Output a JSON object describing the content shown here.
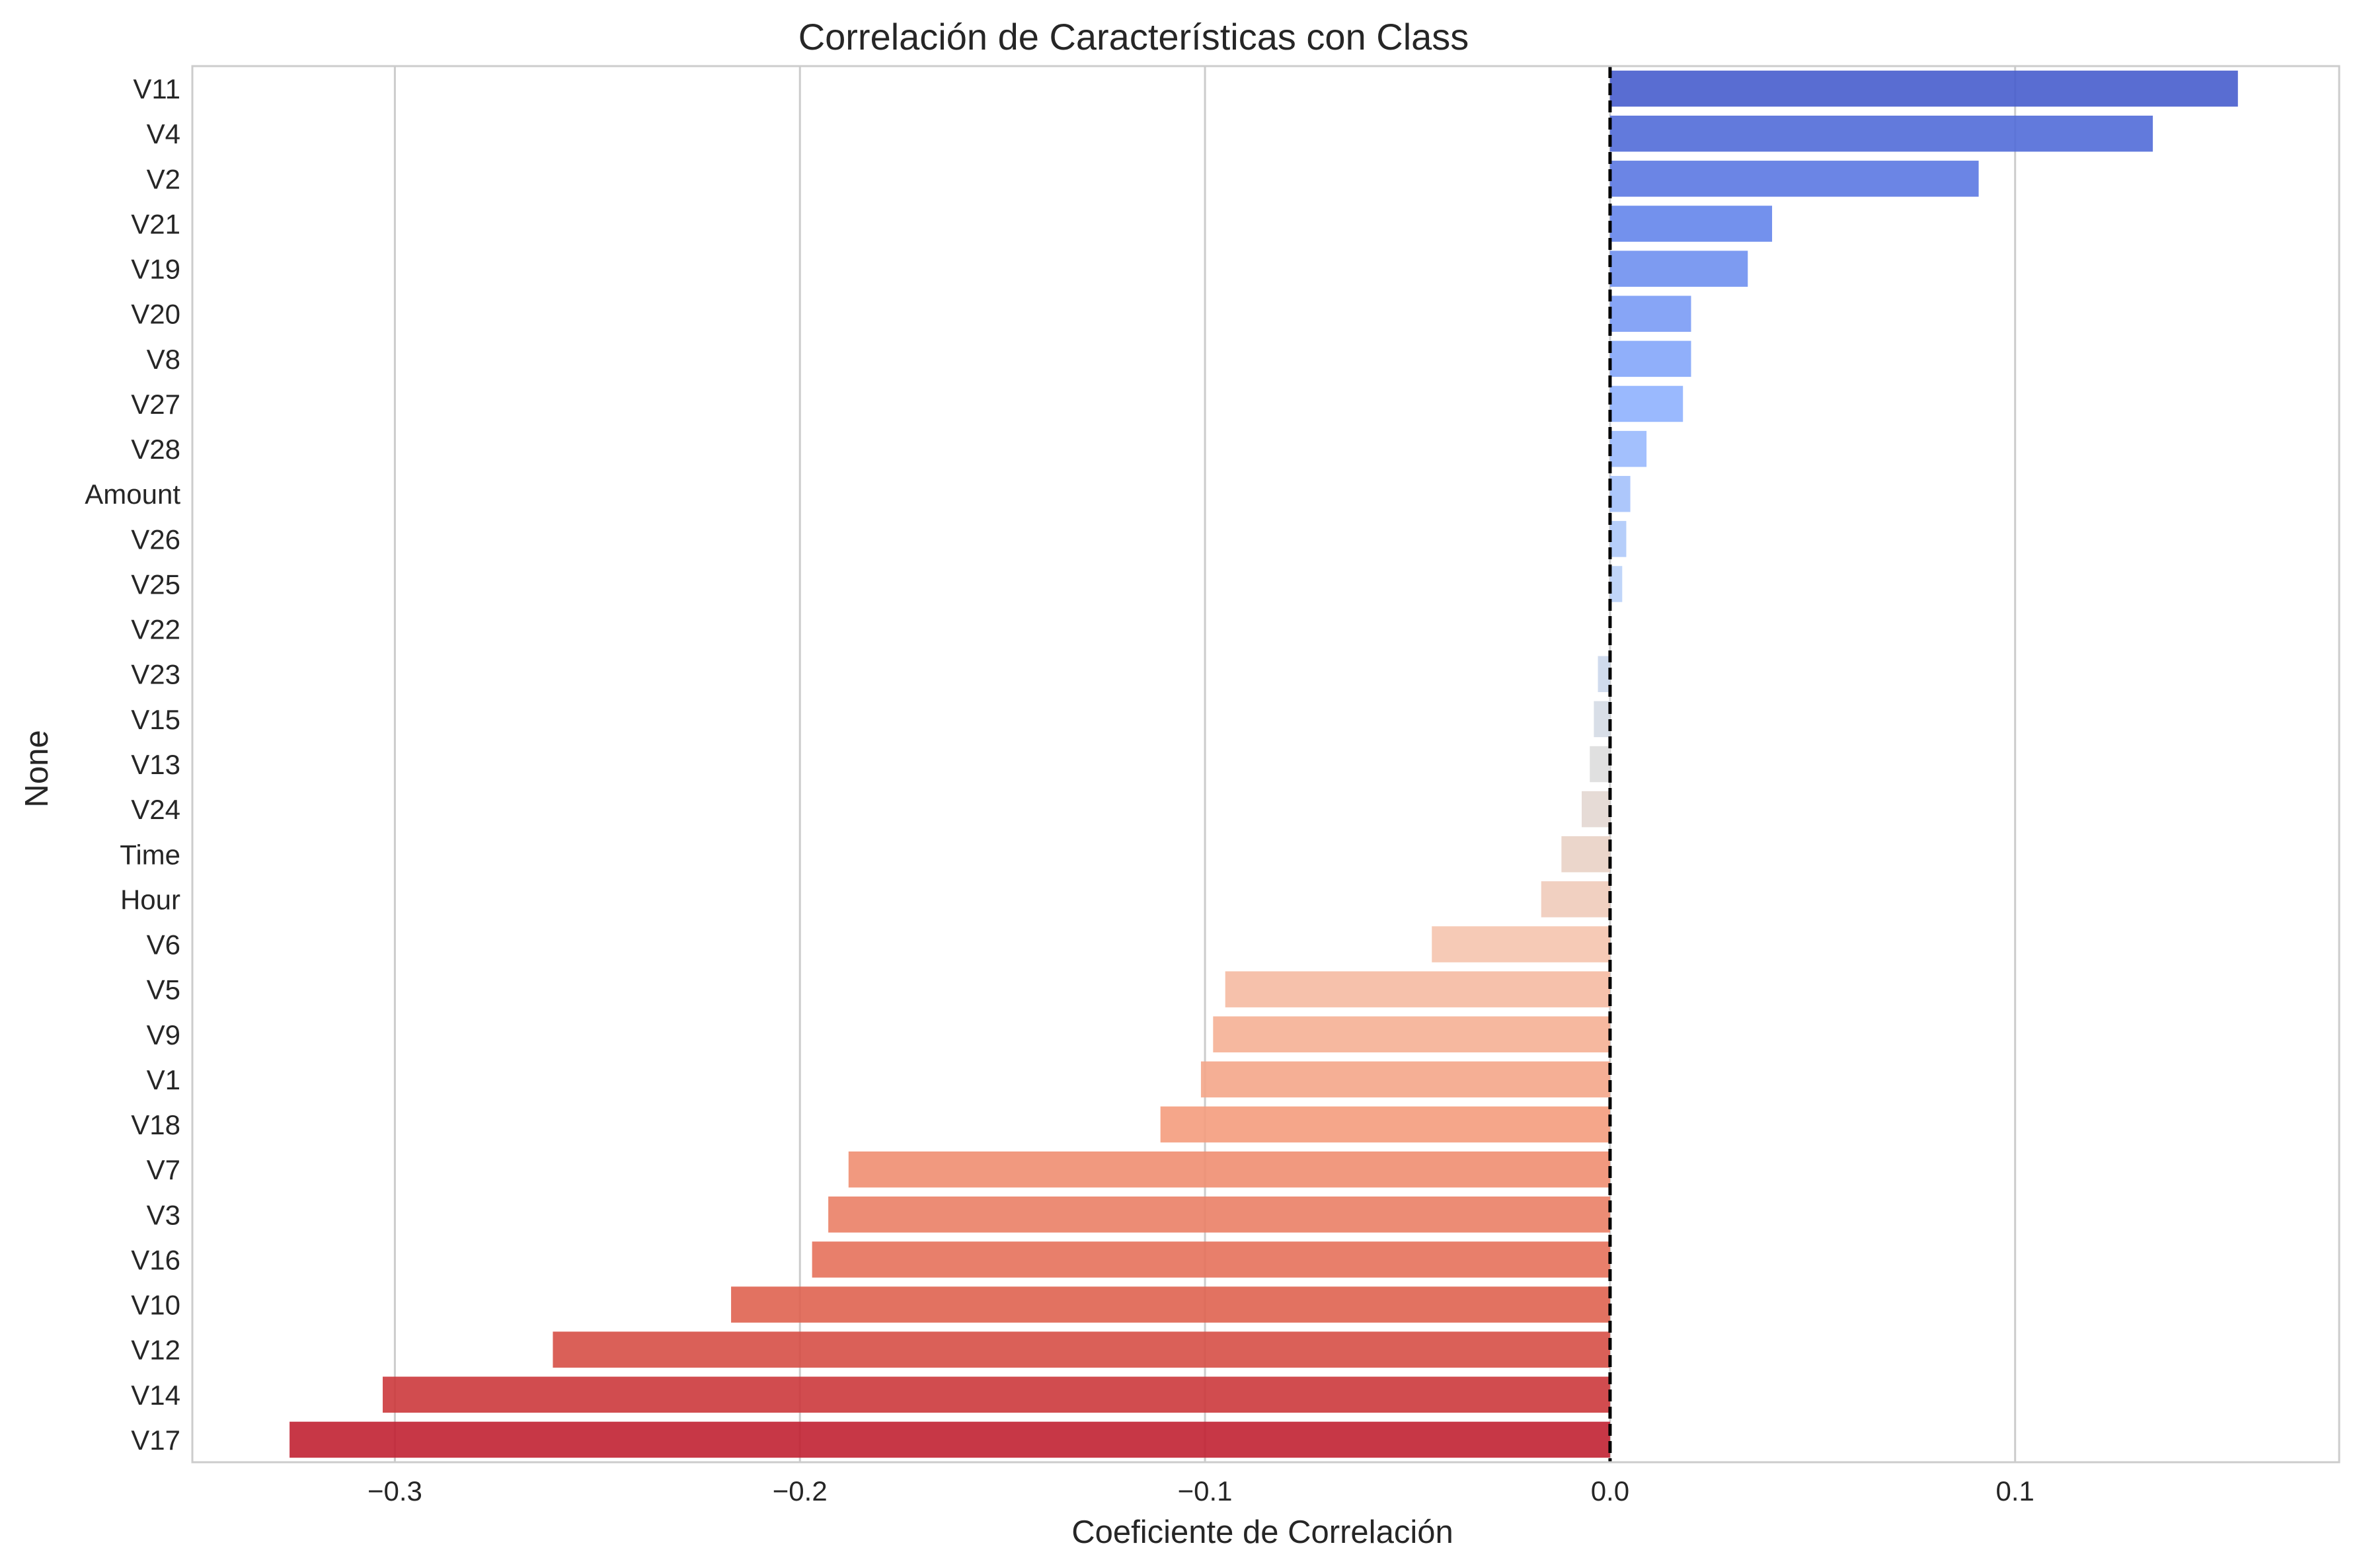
{
  "chart_data": {
    "type": "bar",
    "orientation": "horizontal",
    "title": "Correlación de Características con Class",
    "xlabel": "Coeficiente de Correlación",
    "ylabel": "None",
    "xlim": [
      -0.35,
      0.18
    ],
    "xticks": [
      -0.3,
      -0.2,
      -0.1,
      0.0,
      0.1
    ],
    "xtick_labels": [
      "−0.3",
      "−0.2",
      "−0.1",
      "0.0",
      "0.1"
    ],
    "grid": "vertical",
    "reference_line": 0.0,
    "colormap": "coolwarm",
    "categories": [
      "V11",
      "V4",
      "V2",
      "V21",
      "V19",
      "V20",
      "V8",
      "V27",
      "V28",
      "Amount",
      "V26",
      "V25",
      "V22",
      "V23",
      "V15",
      "V13",
      "V24",
      "Time",
      "Hour",
      "V6",
      "V5",
      "V9",
      "V1",
      "V18",
      "V7",
      "V3",
      "V16",
      "V10",
      "V12",
      "V14",
      "V17"
    ],
    "values": [
      0.155,
      0.134,
      0.091,
      0.04,
      0.034,
      0.02,
      0.02,
      0.018,
      0.009,
      0.005,
      0.004,
      0.003,
      0.0,
      -0.003,
      -0.004,
      -0.005,
      -0.007,
      -0.012,
      -0.017,
      -0.044,
      -0.095,
      -0.098,
      -0.101,
      -0.111,
      -0.188,
      -0.193,
      -0.197,
      -0.217,
      -0.261,
      -0.303,
      -0.326
    ]
  }
}
